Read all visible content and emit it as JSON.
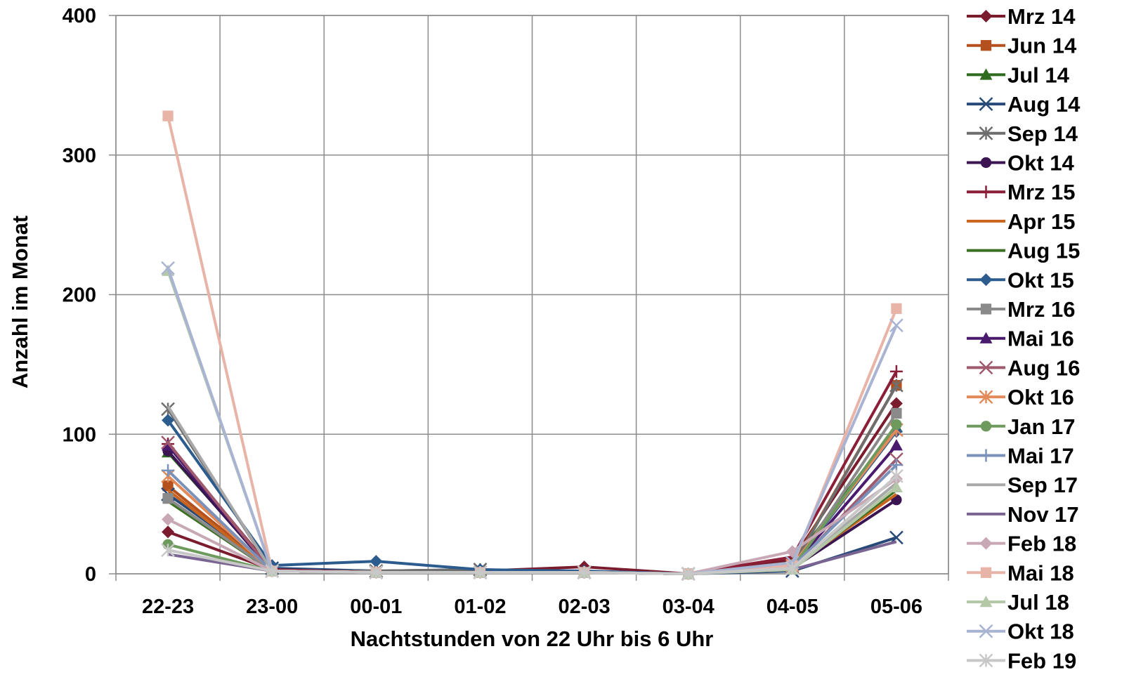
{
  "chart_data": {
    "type": "line",
    "title": "",
    "xlabel": "Nachtstunden von 22 Uhr bis 6 Uhr",
    "ylabel": "Anzahl im Monat",
    "ylim": [
      0,
      400
    ],
    "yticks": [
      "0",
      "100",
      "200",
      "300",
      "400"
    ],
    "categories": [
      "22-23",
      "23-00",
      "00-01",
      "01-02",
      "02-03",
      "03-04",
      "04-05",
      "05-06"
    ],
    "grid": true,
    "legend_position": "right",
    "series": [
      {
        "name": "Mrz 14",
        "color": "#7B1B2E",
        "marker": "diamond",
        "values": [
          30,
          3,
          2,
          2,
          5,
          0,
          10,
          122
        ]
      },
      {
        "name": "Jun 14",
        "color": "#B4501E",
        "marker": "square",
        "values": [
          63,
          3,
          1,
          1,
          1,
          0,
          6,
          135
        ]
      },
      {
        "name": "Jul 14",
        "color": "#2E6B1E",
        "marker": "triangle",
        "values": [
          87,
          3,
          1,
          1,
          1,
          0,
          8,
          105
        ]
      },
      {
        "name": "Aug 14",
        "color": "#274A78",
        "marker": "x",
        "values": [
          57,
          4,
          2,
          3,
          1,
          0,
          2,
          26
        ]
      },
      {
        "name": "Sep 14",
        "color": "#6E6E6E",
        "marker": "asterisk",
        "values": [
          118,
          2,
          2,
          3,
          1,
          0,
          5,
          135
        ]
      },
      {
        "name": "Okt 14",
        "color": "#3B1452",
        "marker": "circle",
        "values": [
          88,
          2,
          1,
          1,
          1,
          0,
          4,
          53
        ]
      },
      {
        "name": "Mrz 15",
        "color": "#8C1F38",
        "marker": "plus",
        "values": [
          93,
          3,
          1,
          1,
          1,
          0,
          12,
          145
        ]
      },
      {
        "name": "Apr 15",
        "color": "#C8641E",
        "marker": "none",
        "values": [
          60,
          2,
          1,
          1,
          1,
          0,
          5,
          57
        ]
      },
      {
        "name": "Aug 15",
        "color": "#3A7020",
        "marker": "none",
        "values": [
          52,
          2,
          1,
          1,
          1,
          0,
          4,
          60
        ]
      },
      {
        "name": "Okt 15",
        "color": "#2C5C8E",
        "marker": "diamond",
        "values": [
          110,
          6,
          9,
          3,
          2,
          0,
          5,
          102
        ]
      },
      {
        "name": "Mrz 16",
        "color": "#8A8A8A",
        "marker": "square",
        "values": [
          54,
          2,
          1,
          1,
          1,
          0,
          4,
          115
        ]
      },
      {
        "name": "Mai 16",
        "color": "#4A1A6E",
        "marker": "triangle",
        "values": [
          92,
          2,
          1,
          1,
          1,
          0,
          5,
          92
        ]
      },
      {
        "name": "Aug 16",
        "color": "#A05A6E",
        "marker": "x",
        "values": [
          94,
          2,
          1,
          1,
          1,
          0,
          4,
          82
        ]
      },
      {
        "name": "Okt 16",
        "color": "#E38A5A",
        "marker": "asterisk",
        "values": [
          70,
          2,
          1,
          1,
          1,
          0,
          6,
          103
        ]
      },
      {
        "name": "Jan 17",
        "color": "#6E9A5E",
        "marker": "circle",
        "values": [
          21,
          2,
          1,
          1,
          1,
          0,
          4,
          107
        ]
      },
      {
        "name": "Mai 17",
        "color": "#7A92BA",
        "marker": "plus",
        "values": [
          74,
          2,
          1,
          1,
          1,
          0,
          5,
          78
        ]
      },
      {
        "name": "Sep 17",
        "color": "#A8A8A8",
        "marker": "none",
        "values": [
          120,
          2,
          1,
          1,
          1,
          0,
          4,
          65
        ]
      },
      {
        "name": "Nov 17",
        "color": "#7A6492",
        "marker": "none",
        "values": [
          14,
          2,
          1,
          1,
          1,
          0,
          3,
          23
        ]
      },
      {
        "name": "Feb 18",
        "color": "#C8A8B4",
        "marker": "diamond",
        "values": [
          39,
          2,
          1,
          1,
          1,
          0,
          16,
          68
        ]
      },
      {
        "name": "Mai 18",
        "color": "#E8B4A8",
        "marker": "square",
        "values": [
          328,
          2,
          1,
          1,
          1,
          0,
          6,
          190
        ]
      },
      {
        "name": "Jul 18",
        "color": "#B4C8A8",
        "marker": "triangle",
        "values": [
          217,
          2,
          1,
          1,
          1,
          0,
          3,
          62
        ]
      },
      {
        "name": "Okt 18",
        "color": "#A8B4D2",
        "marker": "x",
        "values": [
          219,
          2,
          1,
          1,
          1,
          0,
          8,
          178
        ]
      },
      {
        "name": "Feb 19",
        "color": "#C8C8C8",
        "marker": "asterisk",
        "values": [
          17,
          2,
          1,
          1,
          1,
          0,
          4,
          70
        ]
      }
    ]
  }
}
